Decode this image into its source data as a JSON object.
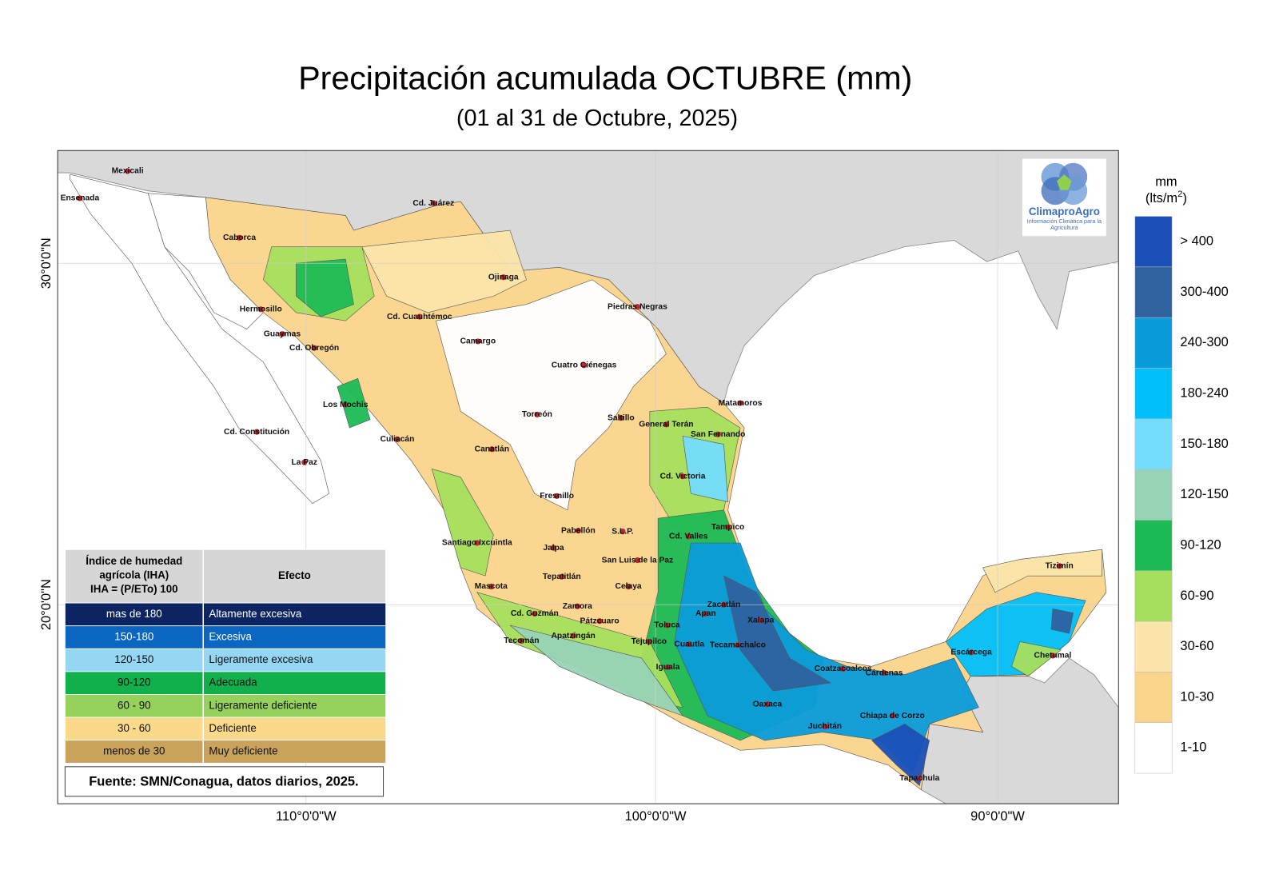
{
  "title": "Precipitación acumulada OCTUBRE (mm)",
  "subtitle": "(01 al 31 de Octubre, 2025)",
  "axes": {
    "longitude_labels": [
      "110°0'0\"W",
      "100°0'0\"W",
      "90°0'0\"W"
    ],
    "latitude_labels": [
      "30°0'0\"N",
      "20°0'0\"N"
    ]
  },
  "cities": [
    "Mexicali",
    "Ensenada",
    "Cd. Juárez",
    "Caborca",
    "Ojinaga",
    "Hermosillo",
    "Piedras Negras",
    "Cd. Cuauhtémoc",
    "Guaymas",
    "Camargo",
    "Cd. Obregón",
    "Cuatro Ciénegas",
    "Los Mochis",
    "Matamoros",
    "Torreón",
    "Saltillo",
    "General Terán",
    "San Fernando",
    "Cd. Constitución",
    "Culiacán",
    "Canatlán",
    "La Paz",
    "Cd. Victoria",
    "Fresnillo",
    "Tampico",
    "Pabellón",
    "S.L.P.",
    "Cd. Valles",
    "Santiago Ixcuintla",
    "Jalpa",
    "San Luis de la Paz",
    "Tizimín",
    "Tepatitlán",
    "Mascota",
    "Celaya",
    "Zacatlán",
    "Cd. Guzmán",
    "Apan",
    "Xalapa",
    "Zamora",
    "Pátzcuaro",
    "Toluca",
    "Tecomán",
    "Apatzingán",
    "Tejupilco",
    "Cuautla",
    "Tecamachalco",
    "Escárcega",
    "Chetumal",
    "Iguala",
    "Coatzacoalcos",
    "Cárdenas",
    "Oaxaca",
    "Chiapa de Corzo",
    "Juchitán",
    "Tapachula"
  ],
  "color_legend": {
    "unit": "mm",
    "unit_detail": [
      "(lts/m",
      "2",
      ")"
    ],
    "classes": [
      {
        "label": "> 400",
        "color": "#1a50b8"
      },
      {
        "label": "300-400",
        "color": "#2f619f"
      },
      {
        "label": "240-300",
        "color": "#0a9bdb"
      },
      {
        "label": "180-240",
        "color": "#00c0fb"
      },
      {
        "label": "150-180",
        "color": "#74dcfd"
      },
      {
        "label": "120-150",
        "color": "#97d3b5"
      },
      {
        "label": "90-120",
        "color": "#1cba55"
      },
      {
        "label": "60-90",
        "color": "#a6df5d"
      },
      {
        "label": "30-60",
        "color": "#fbe5aa"
      },
      {
        "label": "10-30",
        "color": "#fad48a"
      },
      {
        "label": "1-10",
        "color": "#ffffff"
      }
    ]
  },
  "logo": {
    "name": "ClimaproAgro",
    "tagline": "Información Climática para la Agricultura"
  },
  "iha_table": {
    "header": {
      "index_lines": [
        "Índice de humedad",
        "agrícola (IHA)",
        "IHA = (P/ETo) 100"
      ],
      "effect": "Efecto"
    },
    "rows": [
      {
        "range": "mas de 180",
        "effect": "Altamente excesiva",
        "color": "#0c2462"
      },
      {
        "range": "150-180",
        "effect": "Excesiva",
        "color": "#0b66c2"
      },
      {
        "range": "120-150",
        "effect": "Ligeramente excesiva",
        "color": "#95d6f3"
      },
      {
        "range": "90-120",
        "effect": "Adecuada",
        "color": "#11b04d"
      },
      {
        "range": "60 - 90",
        "effect": "Ligeramente deficiente",
        "color": "#95d15c"
      },
      {
        "range": "30 - 60",
        "effect": "Deficiente",
        "color": "#fad98b"
      },
      {
        "range": "menos de 30",
        "effect": "Muy deficiente",
        "color": "#c9a25c"
      }
    ]
  },
  "source": "Fuente: SMN/Conagua, datos diarios, 2025."
}
